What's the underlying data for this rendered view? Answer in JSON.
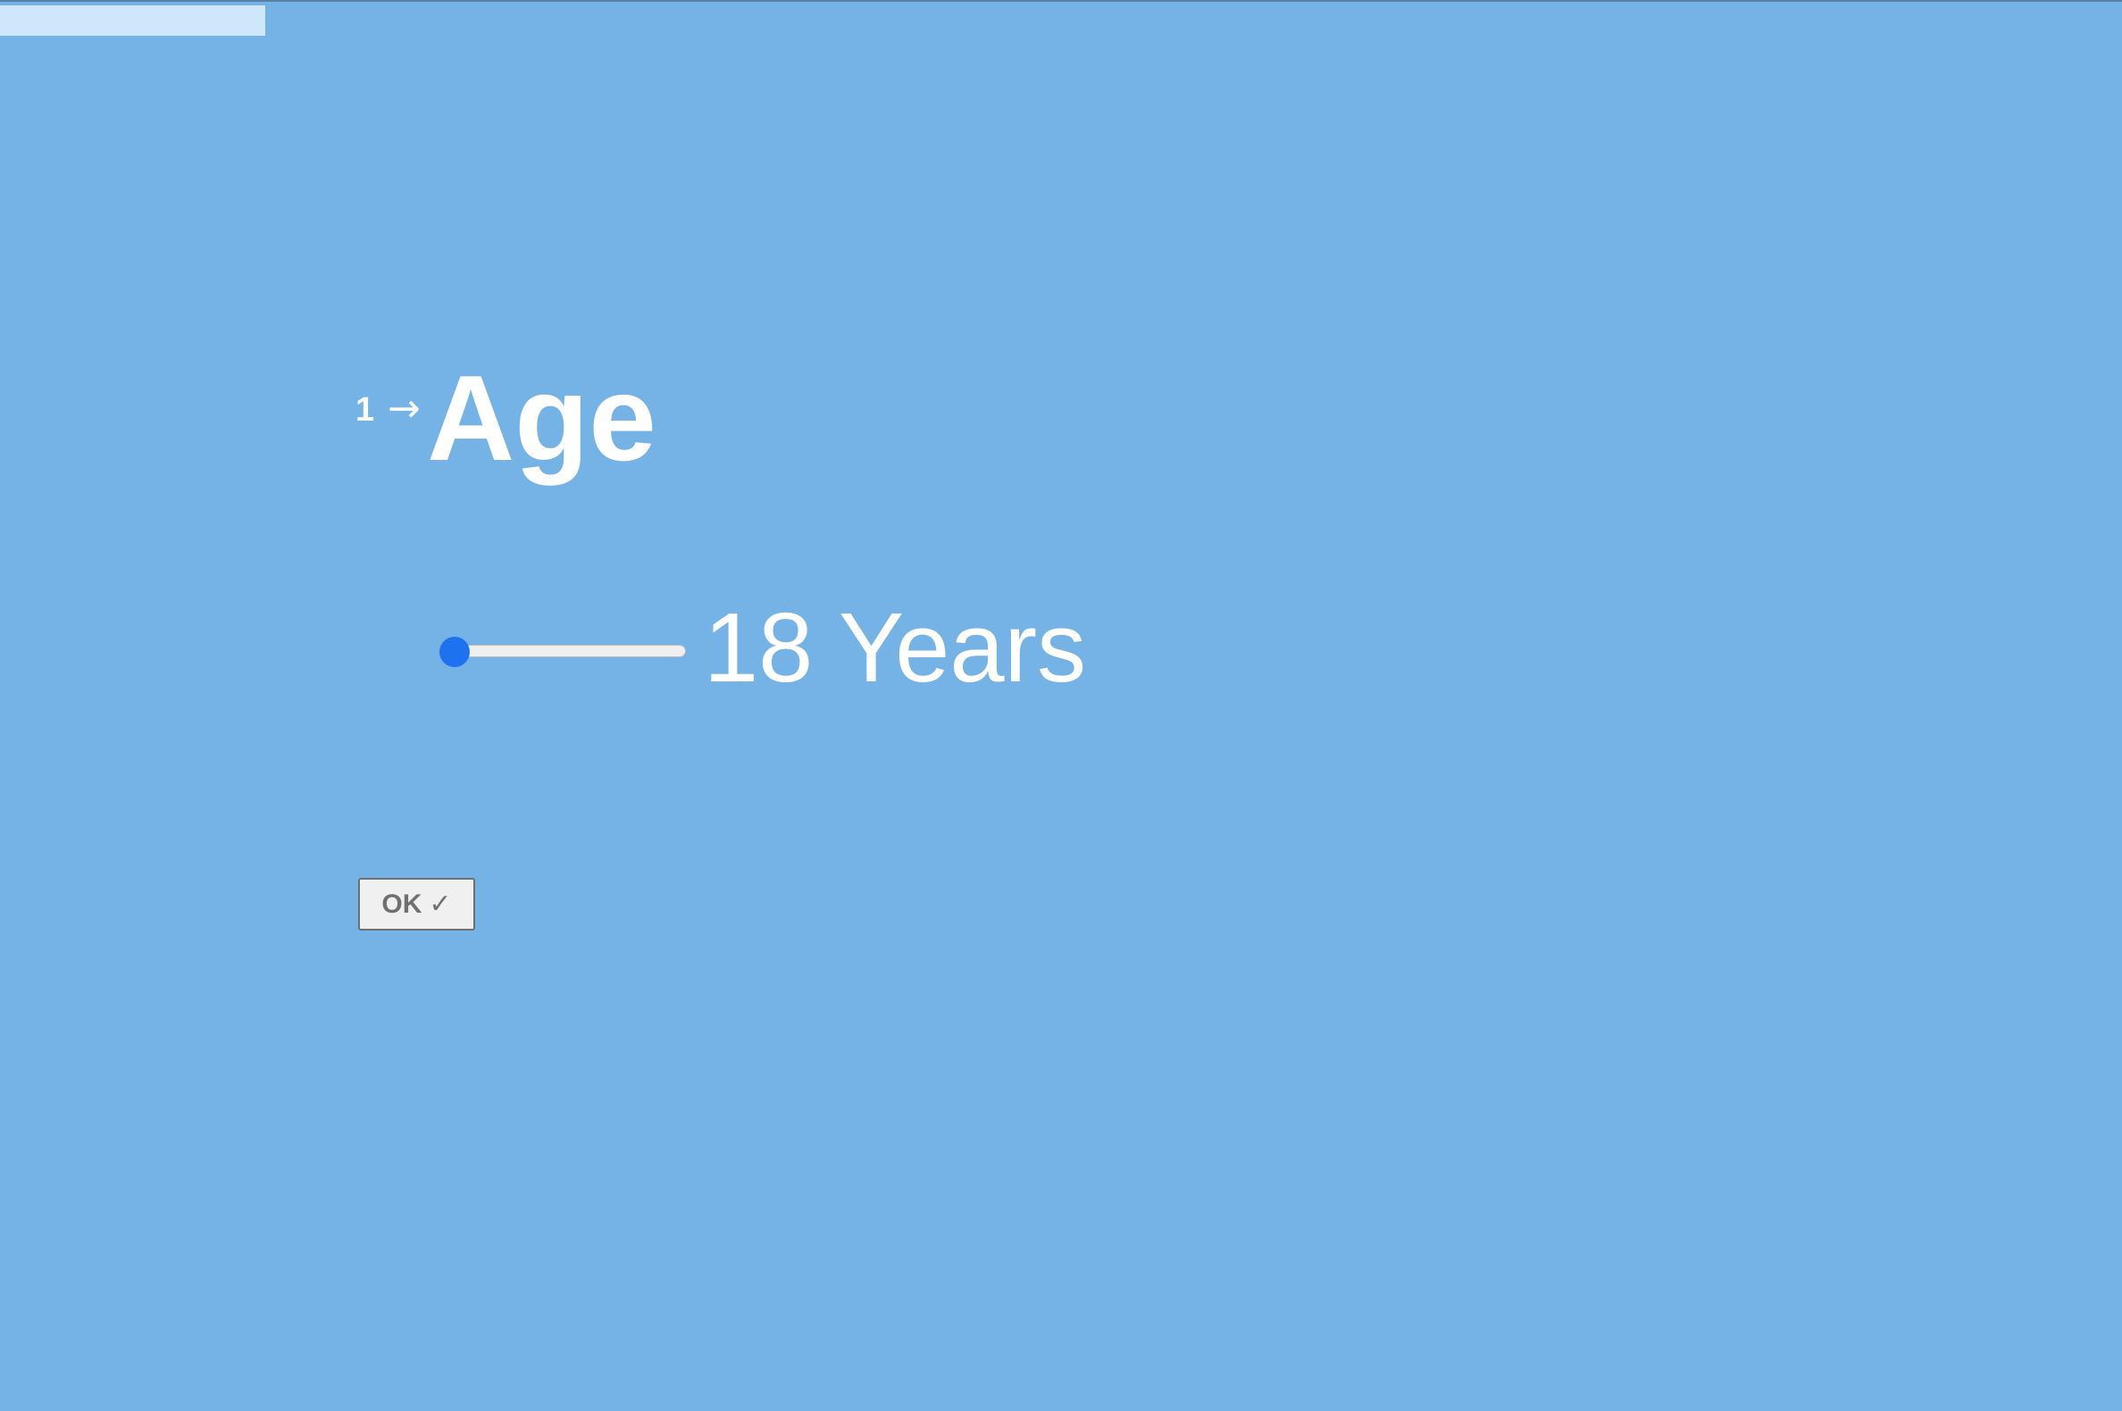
{
  "progress": {
    "fraction": 0.125
  },
  "question": {
    "number": "1",
    "arrow_icon": "arrow-right-icon",
    "title": "Age"
  },
  "slider": {
    "value": 18,
    "value_text": "18 Years",
    "position_fraction": 0
  },
  "ok_button": {
    "label": "OK",
    "icon": "check-icon",
    "icon_glyph": "✓"
  },
  "colors": {
    "background": "#75b2e5",
    "progress_fill": "#cfe7fb",
    "slider_thumb": "#1e72f0",
    "text": "#ffffff"
  }
}
